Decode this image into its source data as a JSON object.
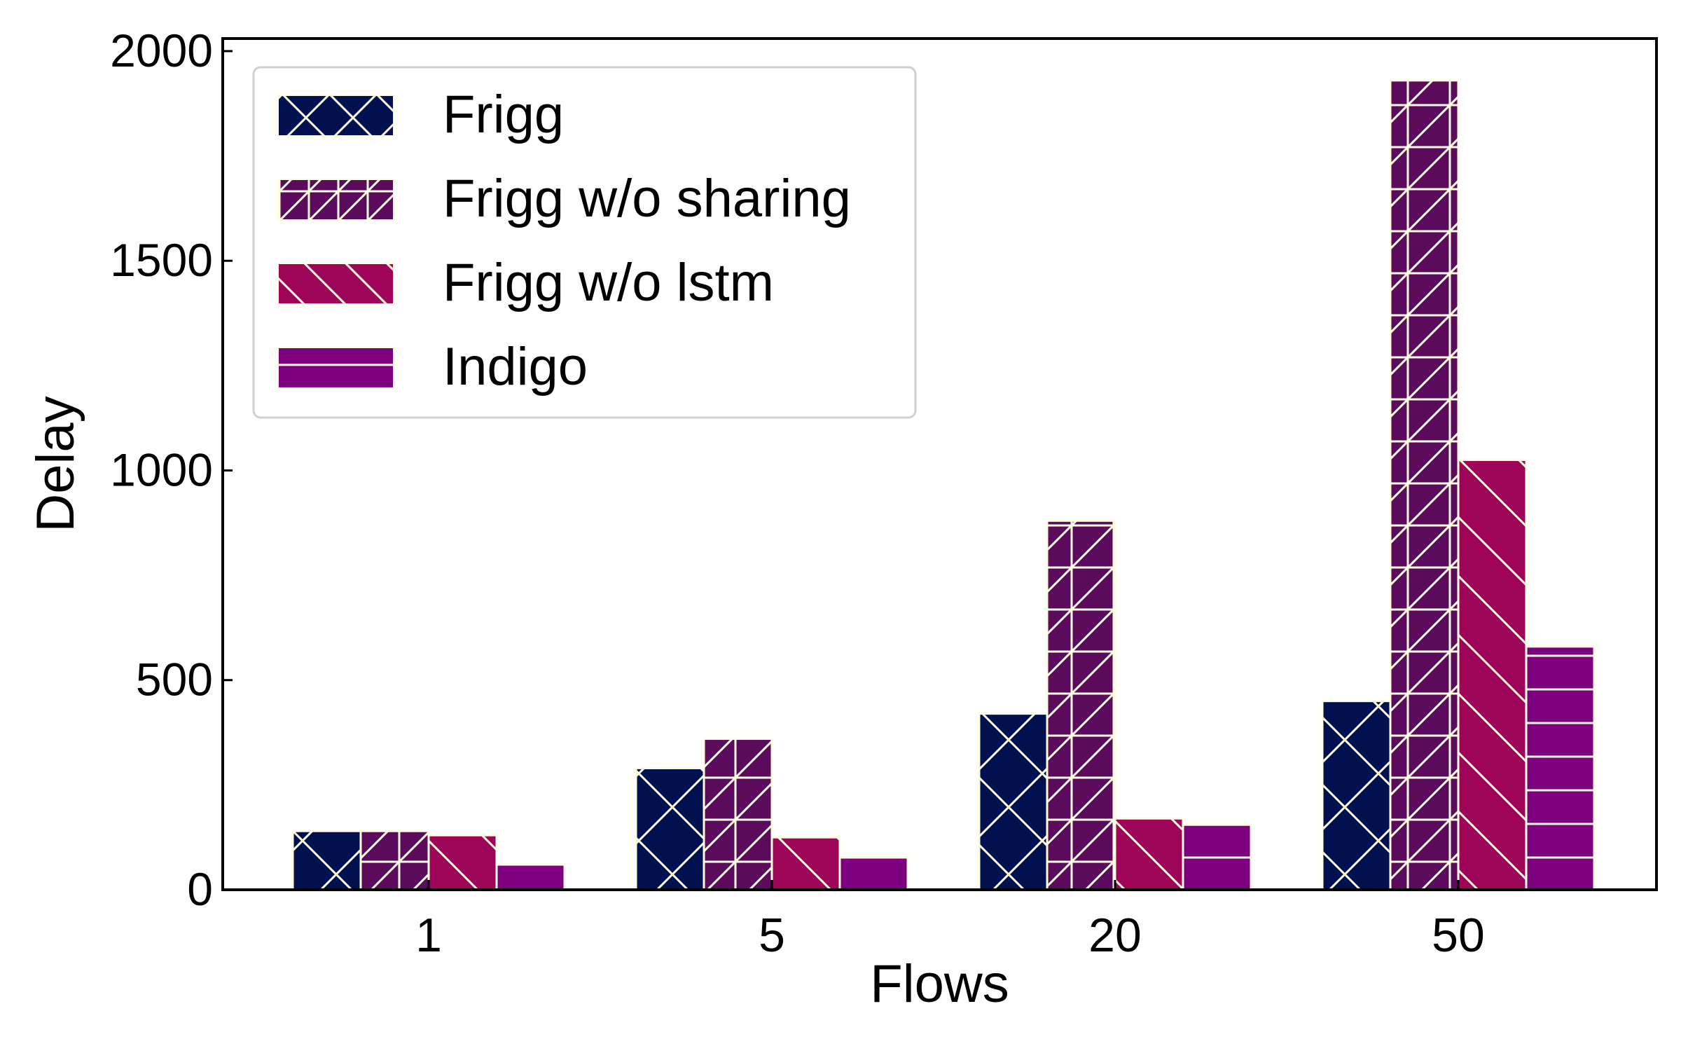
{
  "chart_data": {
    "type": "bar",
    "title": "",
    "xlabel": "Flows",
    "ylabel": "Delay",
    "categories": [
      "1",
      "5",
      "20",
      "50"
    ],
    "ylim": [
      0,
      2030
    ],
    "yticks": [
      "0",
      "500",
      "1000",
      "1500",
      "2000"
    ],
    "ytick_values": [
      0,
      500,
      1000,
      1500,
      2000
    ],
    "grid": false,
    "legend_position": "top-left",
    "series": [
      {
        "name": "Frigg",
        "values": [
          140,
          290,
          420,
          450
        ],
        "color": "#01104f",
        "hatch": "cross-diagonal"
      },
      {
        "name": "Frigg w/o sharing",
        "values": [
          140,
          360,
          880,
          1930
        ],
        "color": "#5c0a5c",
        "hatch": "grid-diagonal"
      },
      {
        "name": "Frigg w/o lstm",
        "values": [
          130,
          125,
          170,
          1025
        ],
        "color": "#9e0559",
        "hatch": "back-diagonal"
      },
      {
        "name": "Indigo",
        "values": [
          60,
          78,
          155,
          580
        ],
        "color": "#7d007f",
        "hatch": "horizontal"
      }
    ],
    "hatch_color": "#fffde0",
    "edge_color": "#fffde0"
  }
}
